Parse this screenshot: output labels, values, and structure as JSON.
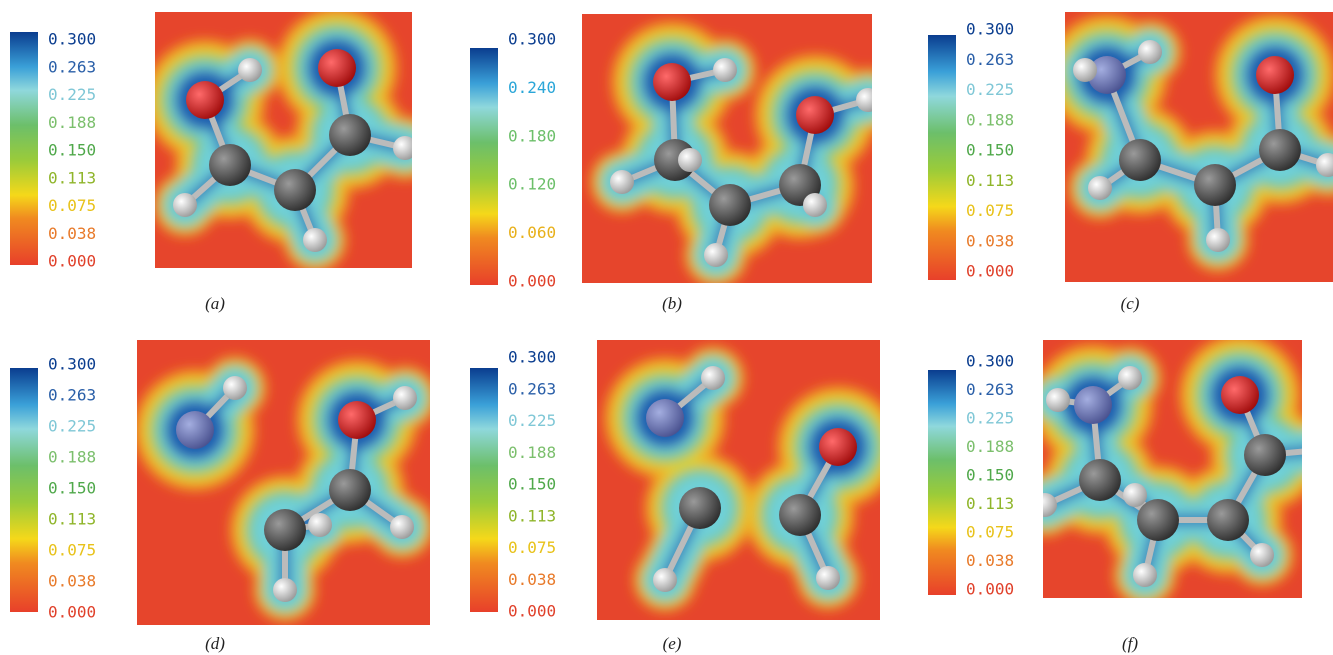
{
  "panels": [
    {
      "caption": "(a)",
      "colorbar_ticks": [
        "0.300",
        "0.263",
        "0.225",
        "0.188",
        "0.150",
        "0.113",
        "0.075",
        "0.038",
        "0.000"
      ]
    },
    {
      "caption": "(b)",
      "colorbar_ticks": [
        "0.300",
        "0.240",
        "0.180",
        "0.120",
        "0.060",
        "0.000"
      ]
    },
    {
      "caption": "(c)",
      "colorbar_ticks": [
        "0.300",
        "0.263",
        "0.225",
        "0.188",
        "0.150",
        "0.113",
        "0.075",
        "0.038",
        "0.000"
      ]
    },
    {
      "caption": "(d)",
      "colorbar_ticks": [
        "0.300",
        "0.263",
        "0.225",
        "0.188",
        "0.150",
        "0.113",
        "0.075",
        "0.038",
        "0.000"
      ]
    },
    {
      "caption": "(e)",
      "colorbar_ticks": [
        "0.300",
        "0.263",
        "0.225",
        "0.188",
        "0.150",
        "0.113",
        "0.075",
        "0.038",
        "0.000"
      ]
    },
    {
      "caption": "(f)",
      "colorbar_ticks": [
        "0.300",
        "0.263",
        "0.225",
        "0.188",
        "0.150",
        "0.113",
        "0.075",
        "0.038",
        "0.000"
      ]
    }
  ]
}
